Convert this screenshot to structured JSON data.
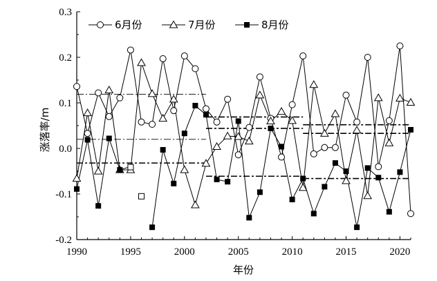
{
  "chart_data": {
    "type": "line",
    "title": "",
    "xlabel": "年份",
    "ylabel": "涨落率/m",
    "xlim": [
      1990,
      2021
    ],
    "ylim": [
      -0.2,
      0.3
    ],
    "xticks": [
      1990,
      1995,
      2000,
      2005,
      2010,
      2015,
      2020
    ],
    "yticks": [
      -0.2,
      -0.1,
      0.0,
      0.1,
      0.2,
      0.3
    ],
    "ytick_labels": [
      "-0.2",
      "-0.1",
      "0.0",
      "0.1",
      "0.2",
      "0.3"
    ],
    "legend_position": "top",
    "x": [
      1990,
      1991,
      1992,
      1993,
      1994,
      1995,
      1996,
      1997,
      1998,
      1999,
      2000,
      2001,
      2002,
      2003,
      2004,
      2005,
      2006,
      2007,
      2008,
      2009,
      2010,
      2011,
      2012,
      2013,
      2014,
      2015,
      2016,
      2017,
      2018,
      2019,
      2020,
      2021
    ],
    "series": [
      {
        "name": "6月份",
        "marker": "circle-open",
        "values": [
          0.136,
          0.033,
          0.122,
          0.07,
          0.111,
          0.216,
          0.058,
          0.053,
          0.197,
          0.083,
          0.203,
          0.175,
          0.087,
          0.058,
          0.108,
          -0.014,
          0.046,
          0.157,
          0.066,
          -0.019,
          0.096,
          0.203,
          -0.012,
          0.002,
          0.002,
          0.117,
          0.058,
          0.2,
          -0.04,
          0.061,
          0.225,
          -0.143
        ]
      },
      {
        "name": "7月份",
        "marker": "triangle-open",
        "values": [
          -0.066,
          0.078,
          -0.05,
          0.128,
          -0.047,
          -0.047,
          0.188,
          0.12,
          0.066,
          0.108,
          -0.047,
          -0.124,
          -0.033,
          0.004,
          0.027,
          0.026,
          0.016,
          0.117,
          0.06,
          0.081,
          0.061,
          -0.086,
          0.14,
          0.033,
          0.076,
          -0.071,
          0.04,
          -0.104,
          0.111,
          0.012,
          0.11,
          0.101
        ]
      },
      {
        "name": "8月份",
        "marker": "square-filled",
        "values": [
          -0.089,
          0.019,
          -0.126,
          0.022,
          -0.047,
          -0.04,
          null,
          -0.173,
          -0.003,
          -0.077,
          0.033,
          0.094,
          0.074,
          -0.068,
          -0.073,
          0.06,
          -0.152,
          -0.096,
          0.044,
          0.004,
          -0.112,
          -0.066,
          -0.143,
          -0.084,
          -0.032,
          -0.05,
          -0.173,
          -0.043,
          -0.064,
          -0.139,
          -0.052,
          0.041
        ]
      }
    ],
    "hollow_square_points": [
      {
        "x": 1995,
        "y": -0.041
      },
      {
        "x": 1996,
        "y": -0.105
      }
    ],
    "reference_lines": [
      {
        "x": [
          1990,
          2002
        ],
        "y": 0.119,
        "style": "dashdot-thin"
      },
      {
        "x": [
          1990,
          2002
        ],
        "y": 0.02,
        "style": "dashdot-thin"
      },
      {
        "x": [
          1990,
          2002
        ],
        "y": -0.032,
        "style": "dashdot"
      },
      {
        "x": [
          2002,
          2011
        ],
        "y": 0.069,
        "style": "dashdot"
      },
      {
        "x": [
          2002,
          2011
        ],
        "y": 0.044,
        "style": "dashdot"
      },
      {
        "x": [
          2002,
          2011
        ],
        "y": -0.061,
        "style": "dashdot"
      },
      {
        "x": [
          2011,
          2021
        ],
        "y": 0.052,
        "style": "dashdot"
      },
      {
        "x": [
          2011,
          2021
        ],
        "y": 0.033,
        "style": "dashdot"
      },
      {
        "x": [
          2011,
          2021
        ],
        "y": -0.066,
        "style": "dashdot"
      }
    ]
  }
}
